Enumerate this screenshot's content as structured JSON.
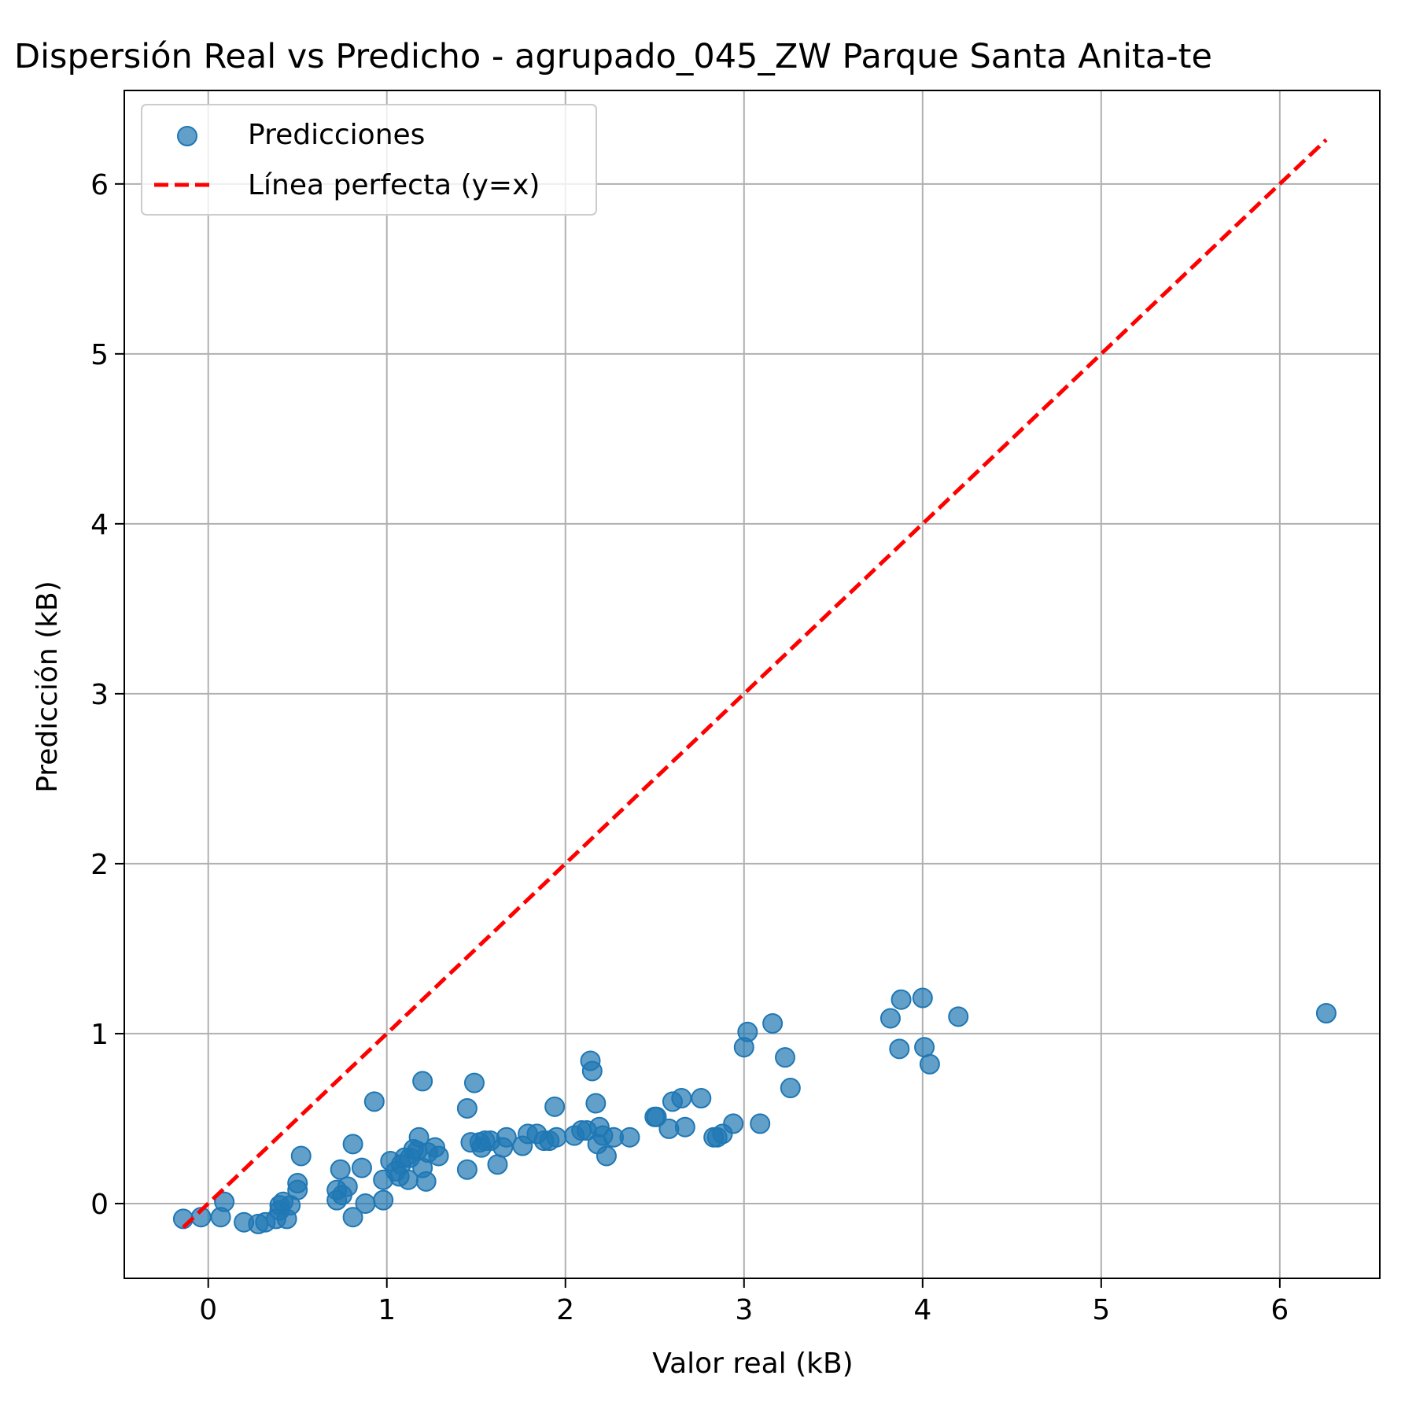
{
  "chart_data": {
    "type": "scatter",
    "title": "Dispersión Real vs Predicho - agrupado_045_ZW Parque Santa Anita-te",
    "xlabel": "Valor real (kB)",
    "ylabel": "Predicción (kB)",
    "xlim": [
      -0.47,
      6.56
    ],
    "ylim": [
      -0.44,
      6.55
    ],
    "xticks": [
      0,
      1,
      2,
      3,
      4,
      5,
      6
    ],
    "yticks": [
      0,
      1,
      2,
      3,
      4,
      5,
      6
    ],
    "grid": true,
    "legend_position": "upper-left",
    "colors": {
      "points": "#1f77b4",
      "line": "#ff0000",
      "grid": "#b0b0b0"
    },
    "series": [
      {
        "name": "Predicciones",
        "kind": "scatter",
        "points": [
          [
            -0.14,
            -0.09
          ],
          [
            -0.04,
            -0.08
          ],
          [
            0.07,
            -0.08
          ],
          [
            0.09,
            0.01
          ],
          [
            0.2,
            -0.11
          ],
          [
            0.28,
            -0.12
          ],
          [
            0.32,
            -0.11
          ],
          [
            0.38,
            -0.09
          ],
          [
            0.4,
            -0.04
          ],
          [
            0.4,
            -0.01
          ],
          [
            0.42,
            0.01
          ],
          [
            0.44,
            -0.09
          ],
          [
            0.46,
            -0.01
          ],
          [
            0.5,
            0.08
          ],
          [
            0.5,
            0.12
          ],
          [
            0.52,
            0.28
          ],
          [
            0.72,
            0.02
          ],
          [
            0.72,
            0.08
          ],
          [
            0.74,
            0.2
          ],
          [
            0.75,
            0.05
          ],
          [
            0.78,
            0.1
          ],
          [
            0.81,
            0.35
          ],
          [
            0.81,
            -0.08
          ],
          [
            0.86,
            0.21
          ],
          [
            0.88,
            0.0
          ],
          [
            0.93,
            0.6
          ],
          [
            0.98,
            0.02
          ],
          [
            0.98,
            0.14
          ],
          [
            1.02,
            0.25
          ],
          [
            1.05,
            0.19
          ],
          [
            1.07,
            0.16
          ],
          [
            1.08,
            0.23
          ],
          [
            1.1,
            0.27
          ],
          [
            1.12,
            0.14
          ],
          [
            1.13,
            0.27
          ],
          [
            1.15,
            0.32
          ],
          [
            1.17,
            0.31
          ],
          [
            1.18,
            0.39
          ],
          [
            1.2,
            0.72
          ],
          [
            1.2,
            0.21
          ],
          [
            1.22,
            0.13
          ],
          [
            1.23,
            0.3
          ],
          [
            1.27,
            0.33
          ],
          [
            1.29,
            0.28
          ],
          [
            1.45,
            0.56
          ],
          [
            1.45,
            0.2
          ],
          [
            1.47,
            0.36
          ],
          [
            1.49,
            0.71
          ],
          [
            1.52,
            0.36
          ],
          [
            1.53,
            0.33
          ],
          [
            1.55,
            0.37
          ],
          [
            1.58,
            0.37
          ],
          [
            1.62,
            0.23
          ],
          [
            1.65,
            0.33
          ],
          [
            1.67,
            0.39
          ],
          [
            1.76,
            0.34
          ],
          [
            1.79,
            0.41
          ],
          [
            1.84,
            0.41
          ],
          [
            1.88,
            0.37
          ],
          [
            1.91,
            0.37
          ],
          [
            1.94,
            0.57
          ],
          [
            1.95,
            0.39
          ],
          [
            2.05,
            0.4
          ],
          [
            2.09,
            0.43
          ],
          [
            2.12,
            0.43
          ],
          [
            2.14,
            0.84
          ],
          [
            2.15,
            0.78
          ],
          [
            2.17,
            0.59
          ],
          [
            2.18,
            0.35
          ],
          [
            2.19,
            0.45
          ],
          [
            2.21,
            0.4
          ],
          [
            2.23,
            0.28
          ],
          [
            2.27,
            0.39
          ],
          [
            2.36,
            0.39
          ],
          [
            2.5,
            0.51
          ],
          [
            2.51,
            0.51
          ],
          [
            2.58,
            0.44
          ],
          [
            2.6,
            0.6
          ],
          [
            2.65,
            0.62
          ],
          [
            2.67,
            0.45
          ],
          [
            2.76,
            0.62
          ],
          [
            2.83,
            0.39
          ],
          [
            2.85,
            0.39
          ],
          [
            2.88,
            0.41
          ],
          [
            2.94,
            0.47
          ],
          [
            3.0,
            0.92
          ],
          [
            3.02,
            1.01
          ],
          [
            3.09,
            0.47
          ],
          [
            3.16,
            1.06
          ],
          [
            3.23,
            0.86
          ],
          [
            3.26,
            0.68
          ],
          [
            3.82,
            1.09
          ],
          [
            3.87,
            0.91
          ],
          [
            3.88,
            1.2
          ],
          [
            4.0,
            1.21
          ],
          [
            4.01,
            0.92
          ],
          [
            4.04,
            0.82
          ],
          [
            4.2,
            1.1
          ],
          [
            6.26,
            1.12
          ]
        ]
      },
      {
        "name": "Línea perfecta (y=x)",
        "kind": "line",
        "style": "dashed",
        "points": [
          [
            -0.14,
            -0.14
          ],
          [
            6.26,
            6.26
          ]
        ]
      }
    ]
  }
}
